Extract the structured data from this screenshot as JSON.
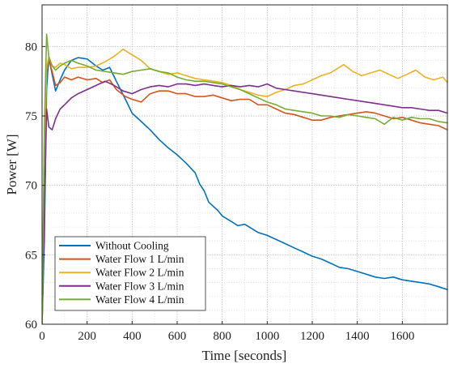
{
  "chart_data": {
    "type": "line",
    "xlabel": "Time [seconds]",
    "ylabel": "Power [W]",
    "xlim": [
      0,
      1800
    ],
    "ylim": [
      60,
      83
    ],
    "x_ticks": [
      0,
      200,
      400,
      600,
      800,
      1000,
      1200,
      1400,
      1600
    ],
    "y_ticks": [
      60,
      65,
      70,
      75,
      80
    ],
    "grid": true,
    "legend_position": "bottom-left",
    "series": [
      {
        "name": "Without Cooling",
        "color": "#0072BD",
        "x": [
          0,
          10,
          20,
          30,
          45,
          60,
          80,
          100,
          130,
          160,
          200,
          240,
          270,
          300,
          330,
          370,
          400,
          440,
          480,
          520,
          560,
          600,
          640,
          680,
          700,
          720,
          740,
          760,
          780,
          800,
          840,
          870,
          900,
          930,
          960,
          1000,
          1040,
          1080,
          1120,
          1160,
          1200,
          1240,
          1280,
          1320,
          1360,
          1400,
          1440,
          1480,
          1520,
          1560,
          1600,
          1640,
          1680,
          1720,
          1760,
          1800
        ],
        "y": [
          60,
          66,
          77,
          79.2,
          78,
          76.8,
          77.6,
          78.3,
          79,
          79.2,
          79.1,
          78.6,
          78.3,
          78.5,
          77.5,
          76.2,
          75.2,
          74.6,
          74,
          73.3,
          72.7,
          72.2,
          71.6,
          70.9,
          70.1,
          69.6,
          68.8,
          68.5,
          68.2,
          67.8,
          67.4,
          67.1,
          67.2,
          66.9,
          66.6,
          66.4,
          66.1,
          65.8,
          65.5,
          65.2,
          64.9,
          64.7,
          64.4,
          64.1,
          64.0,
          63.8,
          63.6,
          63.4,
          63.3,
          63.4,
          63.2,
          63.1,
          63.0,
          62.9,
          62.7,
          62.5
        ]
      },
      {
        "name": "Water Flow 1 L/min",
        "color": "#D95319",
        "x": [
          0,
          10,
          20,
          30,
          45,
          60,
          80,
          100,
          130,
          160,
          200,
          240,
          270,
          300,
          330,
          370,
          400,
          440,
          480,
          520,
          560,
          600,
          640,
          680,
          720,
          760,
          800,
          840,
          880,
          920,
          960,
          1000,
          1040,
          1080,
          1120,
          1160,
          1200,
          1240,
          1280,
          1320,
          1360,
          1400,
          1440,
          1480,
          1520,
          1560,
          1600,
          1640,
          1680,
          1720,
          1760,
          1800
        ],
        "y": [
          60,
          70,
          78.5,
          79,
          78.2,
          77.2,
          77.4,
          77.8,
          77.6,
          77.8,
          77.6,
          77.7,
          77.4,
          77.6,
          76.9,
          76.4,
          76.2,
          76.0,
          76.6,
          76.8,
          76.8,
          76.6,
          76.6,
          76.4,
          76.4,
          76.5,
          76.3,
          76.1,
          76.2,
          76.2,
          75.8,
          75.8,
          75.5,
          75.2,
          75.1,
          74.9,
          74.7,
          74.7,
          74.9,
          75.0,
          75.1,
          75.2,
          75.3,
          75.2,
          75.0,
          74.8,
          74.9,
          74.7,
          74.5,
          74.4,
          74.3,
          74.0
        ]
      },
      {
        "name": "Water Flow 2 L/min",
        "color": "#EDB120",
        "x": [
          0,
          10,
          20,
          30,
          45,
          60,
          80,
          100,
          130,
          160,
          200,
          240,
          280,
          320,
          360,
          400,
          440,
          480,
          520,
          560,
          600,
          640,
          680,
          720,
          760,
          800,
          840,
          880,
          920,
          960,
          1000,
          1040,
          1080,
          1120,
          1160,
          1200,
          1240,
          1280,
          1320,
          1340,
          1380,
          1420,
          1460,
          1500,
          1540,
          1580,
          1620,
          1660,
          1700,
          1740,
          1780,
          1800
        ],
        "y": [
          60,
          72,
          78.5,
          79.3,
          78.6,
          78.5,
          78.8,
          78.7,
          78.4,
          78.5,
          78.5,
          78.6,
          78.9,
          79.3,
          79.8,
          79.4,
          79.0,
          78.4,
          78.2,
          78.0,
          78.1,
          77.9,
          77.7,
          77.6,
          77.5,
          77.4,
          77.2,
          76.9,
          76.7,
          76.5,
          76.4,
          76.7,
          76.9,
          77.2,
          77.3,
          77.6,
          77.9,
          78.1,
          78.5,
          78.7,
          78.2,
          77.9,
          78.1,
          78.3,
          78.0,
          77.7,
          78.0,
          78.3,
          77.8,
          77.6,
          77.8,
          77.4
        ]
      },
      {
        "name": "Water Flow 3 L/min",
        "color": "#7E2F8E",
        "x": [
          0,
          10,
          20,
          30,
          45,
          60,
          80,
          100,
          130,
          160,
          200,
          240,
          280,
          320,
          360,
          400,
          440,
          480,
          520,
          560,
          600,
          640,
          680,
          720,
          760,
          800,
          840,
          880,
          920,
          960,
          1000,
          1040,
          1080,
          1120,
          1160,
          1200,
          1240,
          1280,
          1320,
          1360,
          1400,
          1440,
          1480,
          1520,
          1560,
          1600,
          1640,
          1680,
          1720,
          1760,
          1800
        ],
        "y": [
          60,
          68,
          75.5,
          74.2,
          74.0,
          74.8,
          75.5,
          75.8,
          76.3,
          76.6,
          76.9,
          77.2,
          77.5,
          77.2,
          76.8,
          76.6,
          76.9,
          77.1,
          77.2,
          77.1,
          77.3,
          77.3,
          77.2,
          77.3,
          77.2,
          77.1,
          77.2,
          77.1,
          77.2,
          77.1,
          77.3,
          77.0,
          76.9,
          76.8,
          76.7,
          76.6,
          76.5,
          76.4,
          76.3,
          76.2,
          76.1,
          76.0,
          75.9,
          75.8,
          75.7,
          75.6,
          75.6,
          75.5,
          75.4,
          75.4,
          75.2
        ]
      },
      {
        "name": "Water Flow 4 L/min",
        "color": "#77AC30",
        "x": [
          0,
          10,
          20,
          30,
          45,
          60,
          80,
          100,
          130,
          160,
          200,
          240,
          280,
          320,
          360,
          400,
          440,
          480,
          520,
          560,
          600,
          640,
          680,
          720,
          760,
          800,
          840,
          880,
          920,
          960,
          1000,
          1040,
          1080,
          1120,
          1160,
          1200,
          1240,
          1280,
          1320,
          1360,
          1400,
          1440,
          1480,
          1520,
          1560,
          1600,
          1640,
          1680,
          1720,
          1760,
          1800
        ],
        "y": [
          60,
          74,
          80.9,
          79.2,
          78.6,
          78.3,
          78.6,
          78.8,
          79.0,
          78.8,
          78.6,
          78.3,
          78.2,
          78.1,
          78.0,
          78.2,
          78.3,
          78.4,
          78.2,
          78.1,
          77.8,
          77.6,
          77.5,
          77.5,
          77.4,
          77.3,
          77.1,
          76.9,
          76.6,
          76.3,
          76.0,
          75.8,
          75.5,
          75.4,
          75.3,
          75.2,
          75.0,
          75.0,
          74.9,
          75.1,
          75.0,
          74.9,
          74.8,
          74.4,
          74.9,
          74.7,
          74.9,
          74.8,
          74.8,
          74.6,
          74.5
        ]
      }
    ]
  }
}
